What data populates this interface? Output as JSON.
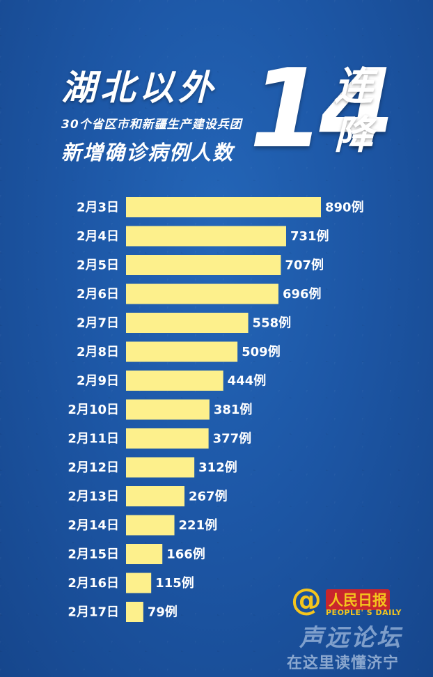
{
  "header": {
    "title_main": "湖北以外",
    "title_sub": "30个省区市和新疆生产建设兵团",
    "title_third": "新增确诊病例人数",
    "big_number": "14",
    "big_word": "连降"
  },
  "chart_data": {
    "type": "bar",
    "orientation": "horizontal",
    "categories": [
      "2月3日",
      "2月4日",
      "2月5日",
      "2月6日",
      "2月7日",
      "2月8日",
      "2月9日",
      "2月10日",
      "2月11日",
      "2月12日",
      "2月13日",
      "2月14日",
      "2月15日",
      "2月16日",
      "2月17日"
    ],
    "values": [
      890,
      731,
      707,
      696,
      558,
      509,
      444,
      381,
      377,
      312,
      267,
      221,
      166,
      115,
      79
    ],
    "value_labels": [
      "890例",
      "731例",
      "707例",
      "696例",
      "558例",
      "509例",
      "444例",
      "381例",
      "377例",
      "312例",
      "267例",
      "221例",
      "166例",
      "115例",
      "79例"
    ],
    "title": "",
    "xlabel": "",
    "ylabel": "",
    "bar_color": "#fdf08c",
    "grid": false
  },
  "logo": {
    "cn": "人民日报",
    "en": "PEOPLE' S DAILY"
  },
  "watermark": {
    "line1": "声远论坛",
    "line2": "在这里读懂济宁"
  }
}
